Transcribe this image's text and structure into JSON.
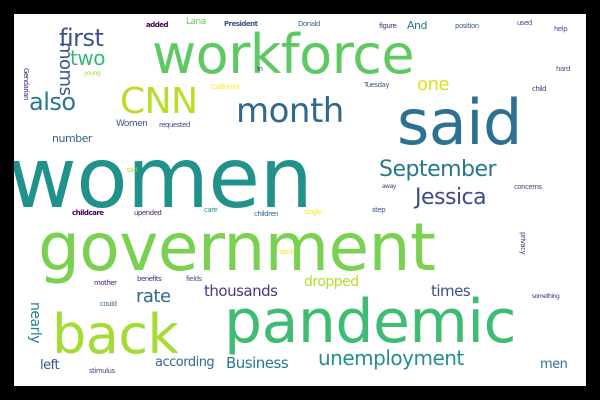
{
  "words": [
    {
      "id": "women",
      "text": "women",
      "color": "#21918c"
    },
    {
      "id": "government",
      "text": "government",
      "color": "#7ad151"
    },
    {
      "id": "workforce",
      "text": "workforce",
      "color": "#5ec962"
    },
    {
      "id": "pandemic",
      "text": "pandemic",
      "color": "#3fbc73"
    },
    {
      "id": "said",
      "text": "said",
      "color": "#2c728e"
    },
    {
      "id": "back",
      "text": "back",
      "color": "#a5db36"
    },
    {
      "id": "month",
      "text": "month",
      "color": "#31688e"
    },
    {
      "id": "cnn",
      "text": "CNN",
      "color": "#b8de29"
    },
    {
      "id": "september",
      "text": "September",
      "color": "#2a788e"
    },
    {
      "id": "jessica",
      "text": "Jessica",
      "color": "#3e4a89"
    },
    {
      "id": "unemployment",
      "text": "unemployment",
      "color": "#21918c"
    },
    {
      "id": "also",
      "text": "also",
      "color": "#2a788e"
    },
    {
      "id": "first",
      "text": "first",
      "color": "#3b528b"
    },
    {
      "id": "two",
      "text": "two",
      "color": "#35b779"
    },
    {
      "id": "moms",
      "text": "moms",
      "color": "#3b528b"
    },
    {
      "id": "one",
      "text": "one",
      "color": "#d8e219"
    },
    {
      "id": "rate",
      "text": "rate",
      "color": "#31688e"
    },
    {
      "id": "thousands",
      "text": "thousands",
      "color": "#443983"
    },
    {
      "id": "dropped",
      "text": "dropped",
      "color": "#b5de2b"
    },
    {
      "id": "times",
      "text": "times",
      "color": "#3e4a89"
    },
    {
      "id": "business",
      "text": "Business",
      "color": "#2a788e"
    },
    {
      "id": "according",
      "text": "according",
      "color": "#31688e"
    },
    {
      "id": "nearly",
      "text": "nearly",
      "color": "#26828e"
    },
    {
      "id": "left",
      "text": "left",
      "color": "#3b528b"
    },
    {
      "id": "men",
      "text": "men",
      "color": "#2c728e"
    },
    {
      "id": "number",
      "text": "number",
      "color": "#31688e"
    },
    {
      "id": "women-small",
      "text": "Women",
      "color": "#3b528b"
    },
    {
      "id": "requested",
      "text": "requested",
      "color": "#3e4a89"
    },
    {
      "id": "and",
      "text": "And",
      "color": "#2a788e"
    },
    {
      "id": "added",
      "text": "added",
      "color": "#440154"
    },
    {
      "id": "lana",
      "text": "Lana",
      "color": "#5ec962"
    },
    {
      "id": "president",
      "text": "President",
      "color": "#3b528b"
    },
    {
      "id": "donald",
      "text": "Donald",
      "color": "#355f8d"
    },
    {
      "id": "figure",
      "text": "figure",
      "color": "#472d7b"
    },
    {
      "id": "position",
      "text": "position",
      "color": "#355f8d"
    },
    {
      "id": "used",
      "text": "used",
      "color": "#3b528b"
    },
    {
      "id": "help",
      "text": "help",
      "color": "#38588c"
    },
    {
      "id": "gendarian",
      "text": "Gendarian",
      "color": "#481b6d"
    },
    {
      "id": "young",
      "text": "young",
      "color": "#9fda3a"
    },
    {
      "id": "california",
      "text": "California",
      "color": "#fde725"
    },
    {
      "id": "in",
      "text": "In",
      "color": "#3e4a89"
    },
    {
      "id": "tuesday",
      "text": "Tuesday",
      "color": "#355f8d"
    },
    {
      "id": "child",
      "text": "child",
      "color": "#46337f"
    },
    {
      "id": "hard",
      "text": "hard",
      "color": "#3b528b"
    },
    {
      "id": "childcare",
      "text": "childcare",
      "color": "#440154"
    },
    {
      "id": "upended",
      "text": "upended",
      "color": "#482475"
    },
    {
      "id": "care",
      "text": "care",
      "color": "#21918c"
    },
    {
      "id": "children",
      "text": "children",
      "color": "#31688e"
    },
    {
      "id": "single",
      "text": "single",
      "color": "#fde725"
    },
    {
      "id": "step",
      "text": "step",
      "color": "#3b528b"
    },
    {
      "id": "concerns",
      "text": "concerns",
      "color": "#3e4a89"
    },
    {
      "id": "away",
      "text": "away",
      "color": "#443983"
    },
    {
      "id": "told",
      "text": "told",
      "color": "#addc30"
    },
    {
      "id": "mother",
      "text": "mother",
      "color": "#482475"
    },
    {
      "id": "benefits",
      "text": "benefits",
      "color": "#472d7b"
    },
    {
      "id": "fields",
      "text": "fields",
      "color": "#3b528b"
    },
    {
      "id": "work",
      "text": "work",
      "color": "#fde725"
    },
    {
      "id": "stimulus",
      "text": "stimulus",
      "color": "#3e4a89"
    },
    {
      "id": "could",
      "text": "could",
      "color": "#31688e"
    },
    {
      "id": "something",
      "text": "something",
      "color": "#472d7b"
    },
    {
      "id": "privacy",
      "text": "privacy",
      "color": "#46337f"
    }
  ]
}
